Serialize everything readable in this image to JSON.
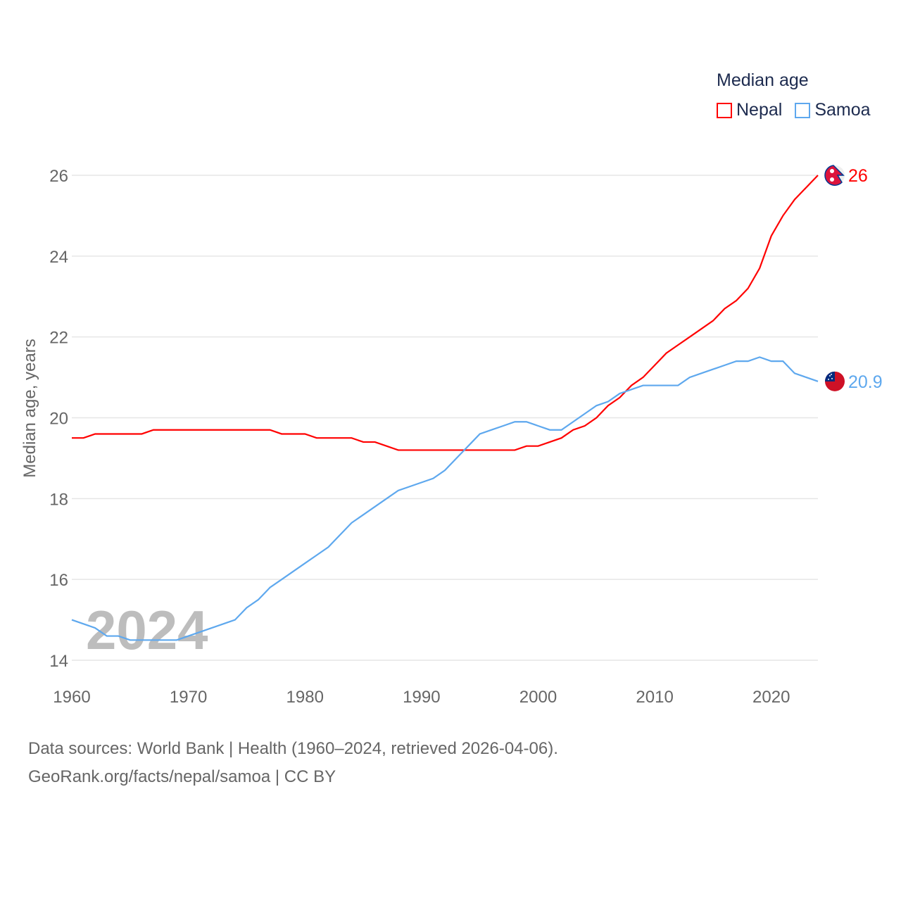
{
  "chart_data": {
    "type": "line",
    "title": "Median age",
    "xlabel": "",
    "ylabel": "Median age, years",
    "xlim": [
      1960,
      2024
    ],
    "ylim": [
      14,
      26
    ],
    "x_ticks": [
      "1960",
      "1970",
      "1980",
      "1990",
      "2000",
      "2010",
      "2020"
    ],
    "y_ticks": [
      "14",
      "16",
      "18",
      "20",
      "22",
      "24",
      "26"
    ],
    "grid": true,
    "legend_position": "top-right",
    "watermark_year": "2024",
    "x": [
      1960,
      1961,
      1962,
      1963,
      1964,
      1965,
      1966,
      1967,
      1968,
      1969,
      1970,
      1971,
      1972,
      1973,
      1974,
      1975,
      1976,
      1977,
      1978,
      1979,
      1980,
      1981,
      1982,
      1983,
      1984,
      1985,
      1986,
      1987,
      1988,
      1989,
      1990,
      1991,
      1992,
      1993,
      1994,
      1995,
      1996,
      1997,
      1998,
      1999,
      2000,
      2001,
      2002,
      2003,
      2004,
      2005,
      2006,
      2007,
      2008,
      2009,
      2010,
      2011,
      2012,
      2013,
      2014,
      2015,
      2016,
      2017,
      2018,
      2019,
      2020,
      2021,
      2022,
      2023,
      2024
    ],
    "series": [
      {
        "name": "Nepal",
        "color": "#ff0000",
        "end_label": "26",
        "values": [
          19.5,
          19.5,
          19.6,
          19.6,
          19.6,
          19.6,
          19.6,
          19.7,
          19.7,
          19.7,
          19.7,
          19.7,
          19.7,
          19.7,
          19.7,
          19.7,
          19.7,
          19.7,
          19.6,
          19.6,
          19.6,
          19.5,
          19.5,
          19.5,
          19.5,
          19.4,
          19.4,
          19.3,
          19.2,
          19.2,
          19.2,
          19.2,
          19.2,
          19.2,
          19.2,
          19.2,
          19.2,
          19.2,
          19.2,
          19.3,
          19.3,
          19.4,
          19.5,
          19.7,
          19.8,
          20.0,
          20.3,
          20.5,
          20.8,
          21.0,
          21.3,
          21.6,
          21.8,
          22.0,
          22.2,
          22.4,
          22.7,
          22.9,
          23.2,
          23.7,
          24.5,
          25.0,
          25.4,
          25.7,
          26.0
        ]
      },
      {
        "name": "Samoa",
        "color": "#5ea8ee",
        "end_label": "20.9",
        "values": [
          15.0,
          14.9,
          14.8,
          14.6,
          14.6,
          14.5,
          14.5,
          14.5,
          14.5,
          14.5,
          14.6,
          14.7,
          14.8,
          14.9,
          15.0,
          15.3,
          15.5,
          15.8,
          16.0,
          16.2,
          16.4,
          16.6,
          16.8,
          17.1,
          17.4,
          17.6,
          17.8,
          18.0,
          18.2,
          18.3,
          18.4,
          18.5,
          18.7,
          19.0,
          19.3,
          19.6,
          19.7,
          19.8,
          19.9,
          19.9,
          19.8,
          19.7,
          19.7,
          19.9,
          20.1,
          20.3,
          20.4,
          20.6,
          20.7,
          20.8,
          20.8,
          20.8,
          20.8,
          21.0,
          21.1,
          21.2,
          21.3,
          21.4,
          21.4,
          21.5,
          21.4,
          21.4,
          21.1,
          21.0,
          20.9
        ]
      }
    ]
  },
  "footer": {
    "line1": "Data sources: World Bank | Health (1960–2024, retrieved 2026-04-06).",
    "line2": "GeoRank.org/facts/nepal/samoa | CC BY"
  }
}
